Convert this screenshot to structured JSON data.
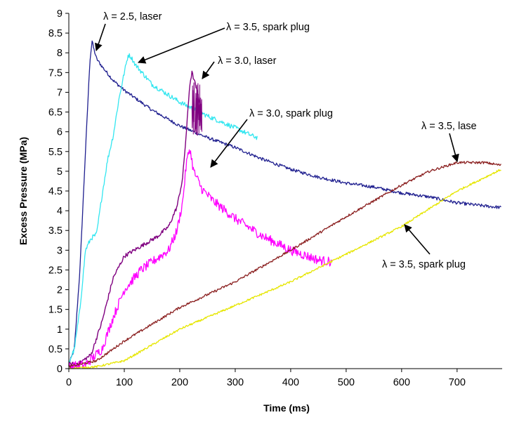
{
  "chart_data": {
    "type": "line",
    "xlabel": "Time (ms)",
    "ylabel": "Excess Pressure (MPa)",
    "xlim": [
      0,
      780
    ],
    "ylim": [
      0,
      9
    ],
    "x_ticks": [
      "0",
      "100",
      "200",
      "300",
      "400",
      "500",
      "600",
      "700"
    ],
    "y_ticks": [
      "0",
      "0.5",
      "1",
      "1.5",
      "2",
      "2.5",
      "3",
      "3.5",
      "4",
      "4.5",
      "5",
      "5.5",
      "6",
      "6.5",
      "7",
      "7.5",
      "8",
      "8.5",
      "9"
    ],
    "grid": false,
    "legend": "none",
    "series": [
      {
        "name": "λ = 2.5, laser",
        "color": "#1f1f8f",
        "noise": 0.04,
        "points": [
          [
            0,
            0.1
          ],
          [
            10,
            0.5
          ],
          [
            20,
            2.5
          ],
          [
            30,
            5.5
          ],
          [
            38,
            7.8
          ],
          [
            42,
            8.3
          ],
          [
            45,
            8.1
          ],
          [
            50,
            7.85
          ],
          [
            60,
            7.65
          ],
          [
            80,
            7.3
          ],
          [
            100,
            7.05
          ],
          [
            150,
            6.55
          ],
          [
            200,
            6.15
          ],
          [
            250,
            5.85
          ],
          [
            300,
            5.6
          ],
          [
            350,
            5.3
          ],
          [
            400,
            5.05
          ],
          [
            450,
            4.85
          ],
          [
            500,
            4.7
          ],
          [
            550,
            4.6
          ],
          [
            600,
            4.45
          ],
          [
            650,
            4.35
          ],
          [
            700,
            4.2
          ],
          [
            750,
            4.12
          ],
          [
            780,
            4.08
          ]
        ]
      },
      {
        "name": "λ = 3.5, spark plug",
        "color": "#33e6f0",
        "noise": 0.06,
        "points": [
          [
            0,
            0.15
          ],
          [
            10,
            0.5
          ],
          [
            20,
            1.5
          ],
          [
            30,
            3.0
          ],
          [
            40,
            3.3
          ],
          [
            50,
            3.4
          ],
          [
            55,
            3.9
          ],
          [
            60,
            4.4
          ],
          [
            70,
            5.3
          ],
          [
            80,
            5.9
          ],
          [
            90,
            6.8
          ],
          [
            100,
            7.5
          ],
          [
            107,
            7.95
          ],
          [
            112,
            7.9
          ],
          [
            120,
            7.7
          ],
          [
            150,
            7.2
          ],
          [
            200,
            6.75
          ],
          [
            250,
            6.4
          ],
          [
            300,
            6.1
          ],
          [
            330,
            5.9
          ],
          [
            340,
            5.85
          ]
        ]
      },
      {
        "name": "λ = 3.0, laser",
        "color": "#800080",
        "noise": 0.05,
        "points": [
          [
            0,
            0.1
          ],
          [
            20,
            0.15
          ],
          [
            40,
            0.35
          ],
          [
            60,
            1.2
          ],
          [
            80,
            2.3
          ],
          [
            100,
            2.85
          ],
          [
            130,
            3.1
          ],
          [
            160,
            3.35
          ],
          [
            180,
            3.6
          ],
          [
            195,
            4.1
          ],
          [
            205,
            4.8
          ],
          [
            212,
            6.0
          ],
          [
            218,
            7.2
          ],
          [
            222,
            7.5
          ],
          [
            228,
            7.2
          ],
          [
            235,
            6.8
          ],
          [
            240,
            6.5
          ]
        ],
        "burst": {
          "from": 222,
          "to": 240,
          "spread": [
            5.9,
            7.3
          ]
        }
      },
      {
        "name": "λ = 3.0, spark plug",
        "color": "#ff00ff",
        "noise": 0.12,
        "points": [
          [
            0,
            0.05
          ],
          [
            30,
            0.1
          ],
          [
            60,
            0.5
          ],
          [
            80,
            1.3
          ],
          [
            100,
            2.0
          ],
          [
            130,
            2.5
          ],
          [
            160,
            2.8
          ],
          [
            180,
            3.0
          ],
          [
            195,
            3.5
          ],
          [
            205,
            4.2
          ],
          [
            212,
            5.2
          ],
          [
            218,
            5.6
          ],
          [
            225,
            5.0
          ],
          [
            240,
            4.55
          ],
          [
            260,
            4.25
          ],
          [
            300,
            3.8
          ],
          [
            350,
            3.35
          ],
          [
            400,
            3.0
          ],
          [
            450,
            2.75
          ],
          [
            475,
            2.7
          ]
        ]
      },
      {
        "name": "λ = 3.5, laser",
        "color": "#8b2020",
        "noise": 0.03,
        "points": [
          [
            0,
            0.05
          ],
          [
            50,
            0.2
          ],
          [
            100,
            0.7
          ],
          [
            200,
            1.55
          ],
          [
            300,
            2.2
          ],
          [
            400,
            3.0
          ],
          [
            500,
            3.85
          ],
          [
            600,
            4.65
          ],
          [
            650,
            5.0
          ],
          [
            700,
            5.22
          ],
          [
            750,
            5.22
          ],
          [
            780,
            5.15
          ]
        ]
      },
      {
        "name": "λ = 3.5, spark plug",
        "color": "#e6e600",
        "noise": 0.025,
        "points": [
          [
            0,
            0.0
          ],
          [
            50,
            0.05
          ],
          [
            100,
            0.2
          ],
          [
            150,
            0.6
          ],
          [
            200,
            1.0
          ],
          [
            300,
            1.6
          ],
          [
            400,
            2.2
          ],
          [
            500,
            2.9
          ],
          [
            600,
            3.6
          ],
          [
            700,
            4.5
          ],
          [
            780,
            5.05
          ]
        ]
      }
    ],
    "annotations": [
      {
        "text": "λ = 2.5, laser",
        "series": "λ = 2.5, laser"
      },
      {
        "text": "λ =  3.5, spark plug",
        "series": "λ = 3.5, spark plug"
      },
      {
        "text": "λ = 3.0, laser",
        "series": "λ = 3.0, laser"
      },
      {
        "text": "λ = 3.0, spark plug",
        "series": "λ = 3.0, spark plug"
      },
      {
        "text": "λ = 3.5, lase",
        "series": "λ = 3.5, laser"
      },
      {
        "text": "λ = 3.5, spark plug",
        "series": "λ = 3.5, spark plug"
      }
    ]
  }
}
